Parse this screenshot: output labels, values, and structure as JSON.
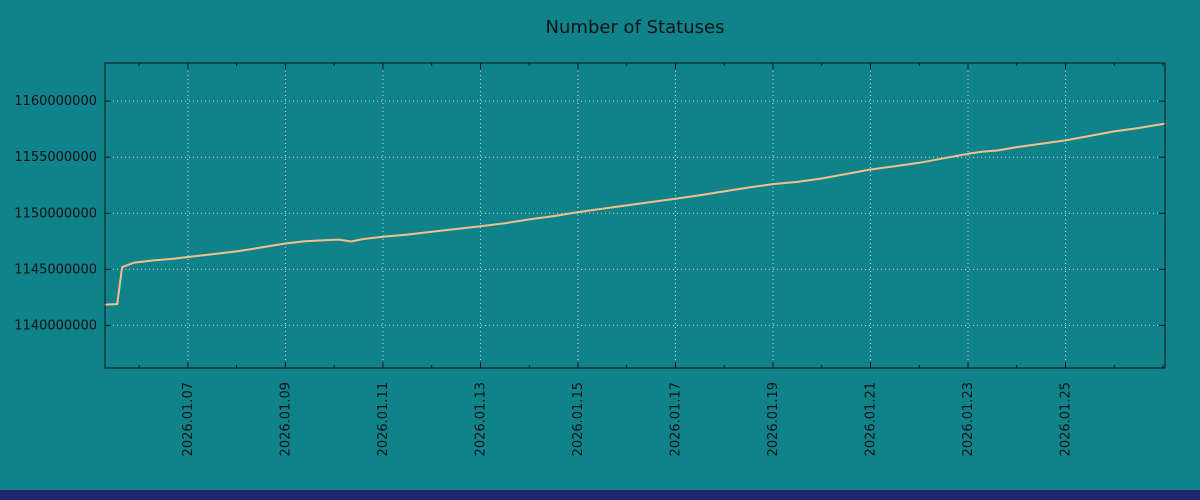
{
  "page": {
    "background_color": "#10838a",
    "bottom_bar_color": "#20276f"
  },
  "chart_data": {
    "type": "line",
    "title": "Number of Statuses",
    "xlabel": "",
    "ylabel": "",
    "legend": "none",
    "grid": "dotted",
    "grid_color": "#cdd9d9",
    "border_color": "#111111",
    "x_range": [
      5.3,
      27.04
    ],
    "y_range": [
      1136200000,
      1163400000
    ],
    "x_tick_unit": "date",
    "x_ticks": [
      {
        "day": 7,
        "label": "2026.01.07"
      },
      {
        "day": 9,
        "label": "2026.01.09"
      },
      {
        "day": 11,
        "label": "2026.01.11"
      },
      {
        "day": 13,
        "label": "2026.01.13"
      },
      {
        "day": 15,
        "label": "2026.01.15"
      },
      {
        "day": 17,
        "label": "2026.01.17"
      },
      {
        "day": 19,
        "label": "2026.01.19"
      },
      {
        "day": 21,
        "label": "2026.01.21"
      },
      {
        "day": 23,
        "label": "2026.01.23"
      },
      {
        "day": 25,
        "label": "2026.01.25"
      }
    ],
    "x_minor_tick_days": [
      6,
      8,
      10,
      12,
      14,
      16,
      18,
      20,
      22,
      24,
      26,
      27
    ],
    "y_ticks": [
      {
        "value": 1140000000,
        "label": "1140000000"
      },
      {
        "value": 1145000000,
        "label": "1145000000"
      },
      {
        "value": 1150000000,
        "label": "1150000000"
      },
      {
        "value": 1155000000,
        "label": "1155000000"
      },
      {
        "value": 1160000000,
        "label": "1160000000"
      }
    ],
    "series": [
      {
        "name": "statuses-count",
        "color": "#f1c189",
        "line_width": 2,
        "points": [
          [
            5.3,
            1141850000
          ],
          [
            5.55,
            1141900000
          ],
          [
            5.65,
            1145200000
          ],
          [
            5.9,
            1145600000
          ],
          [
            6.3,
            1145800000
          ],
          [
            6.7,
            1145950000
          ],
          [
            7.0,
            1146100000
          ],
          [
            7.5,
            1146350000
          ],
          [
            8.0,
            1146600000
          ],
          [
            8.5,
            1146950000
          ],
          [
            9.0,
            1147300000
          ],
          [
            9.4,
            1147500000
          ],
          [
            9.8,
            1147600000
          ],
          [
            10.1,
            1147650000
          ],
          [
            10.35,
            1147480000
          ],
          [
            10.6,
            1147700000
          ],
          [
            11.0,
            1147900000
          ],
          [
            11.5,
            1148100000
          ],
          [
            12.0,
            1148350000
          ],
          [
            12.5,
            1148600000
          ],
          [
            13.0,
            1148850000
          ],
          [
            13.5,
            1149100000
          ],
          [
            14.0,
            1149450000
          ],
          [
            14.5,
            1149750000
          ],
          [
            15.0,
            1150100000
          ],
          [
            15.5,
            1150400000
          ],
          [
            16.0,
            1150700000
          ],
          [
            16.5,
            1151000000
          ],
          [
            17.0,
            1151300000
          ],
          [
            17.5,
            1151600000
          ],
          [
            18.0,
            1151950000
          ],
          [
            18.5,
            1152300000
          ],
          [
            19.0,
            1152600000
          ],
          [
            19.5,
            1152800000
          ],
          [
            20.0,
            1153100000
          ],
          [
            20.5,
            1153500000
          ],
          [
            21.0,
            1153900000
          ],
          [
            21.5,
            1154200000
          ],
          [
            22.0,
            1154500000
          ],
          [
            22.5,
            1154900000
          ],
          [
            23.0,
            1155300000
          ],
          [
            23.3,
            1155500000
          ],
          [
            23.6,
            1155600000
          ],
          [
            24.0,
            1155900000
          ],
          [
            24.5,
            1156200000
          ],
          [
            25.0,
            1156500000
          ],
          [
            25.5,
            1156900000
          ],
          [
            26.0,
            1157300000
          ],
          [
            26.5,
            1157600000
          ],
          [
            27.04,
            1158000000
          ]
        ]
      }
    ]
  }
}
